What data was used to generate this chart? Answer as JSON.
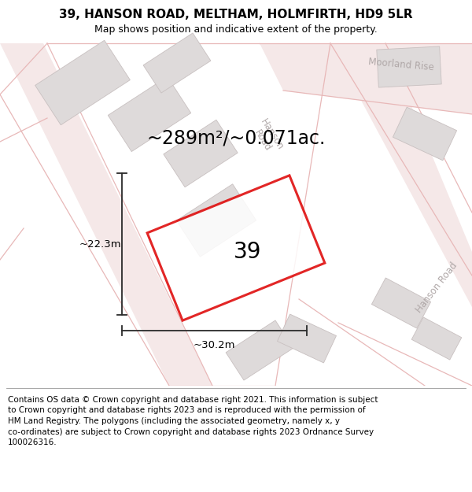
{
  "title_line1": "39, HANSON ROAD, MELTHAM, HOLMFIRTH, HD9 5LR",
  "title_line2": "Map shows position and indicative extent of the property.",
  "area_text": "~289m²/~0.071ac.",
  "label_number": "39",
  "dim_width": "~30.2m",
  "dim_height": "~22.3m",
  "footer_lines": [
    "Contains OS data © Crown copyright and database right 2021. This information is subject",
    "to Crown copyright and database rights 2023 and is reproduced with the permission of",
    "HM Land Registry. The polygons (including the associated geometry, namely x, y",
    "co-ordinates) are subject to Crown copyright and database rights 2023 Ordnance Survey",
    "100026316."
  ],
  "map_bg": "#faf8f8",
  "road_line_color": "#e8b8b8",
  "road_fill_color": "#f5e8e8",
  "building_fill": "#dedada",
  "building_edge": "#c8c0c0",
  "plot_outline_color": "#dd0000",
  "plot_fill_color": "#ffffff",
  "dim_line_color": "#2a2a2a",
  "street_label_color": "#b0a8a8",
  "title_fontsize": 11,
  "subtitle_fontsize": 9,
  "area_fontsize": 17,
  "number_fontsize": 20,
  "dim_fontsize": 9.5,
  "footer_fontsize": 7.5
}
